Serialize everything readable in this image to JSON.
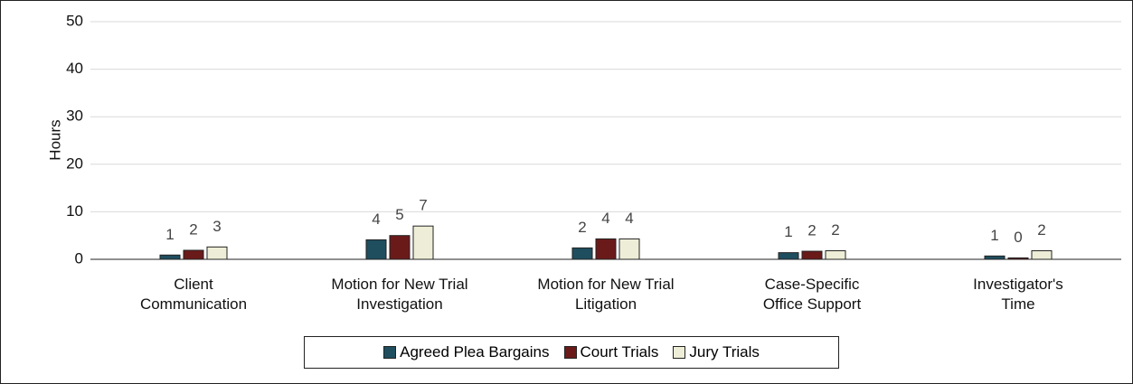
{
  "chart_data": {
    "type": "bar",
    "categories": [
      "Client\nCommunication",
      "Motion for New Trial\nInvestigation",
      "Motion for New Trial\nLitigation",
      "Case-Specific\nOffice Support",
      "Investigator's\nTime"
    ],
    "series": [
      {
        "name": "Agreed Plea Bargains",
        "color": "#1f4e5f",
        "values": [
          0.9,
          4.1,
          2.4,
          1.4,
          0.7
        ],
        "value_labels": [
          "1",
          "4",
          "2",
          "1",
          "1"
        ]
      },
      {
        "name": "Court Trials",
        "color": "#6b1a1a",
        "values": [
          1.9,
          5.0,
          4.3,
          1.7,
          0.3
        ],
        "value_labels": [
          "2",
          "5",
          "4",
          "2",
          "0"
        ]
      },
      {
        "name": "Jury Trials",
        "color": "#eeeed8",
        "values": [
          2.6,
          7.0,
          4.3,
          1.8,
          1.8
        ],
        "value_labels": [
          "3",
          "7",
          "4",
          "2",
          "2"
        ]
      }
    ],
    "y_label": "Hours",
    "ylim": [
      0,
      50
    ],
    "yticks": [
      0,
      10,
      20,
      30,
      40,
      50
    ],
    "grid": true,
    "legend": "bottom"
  }
}
